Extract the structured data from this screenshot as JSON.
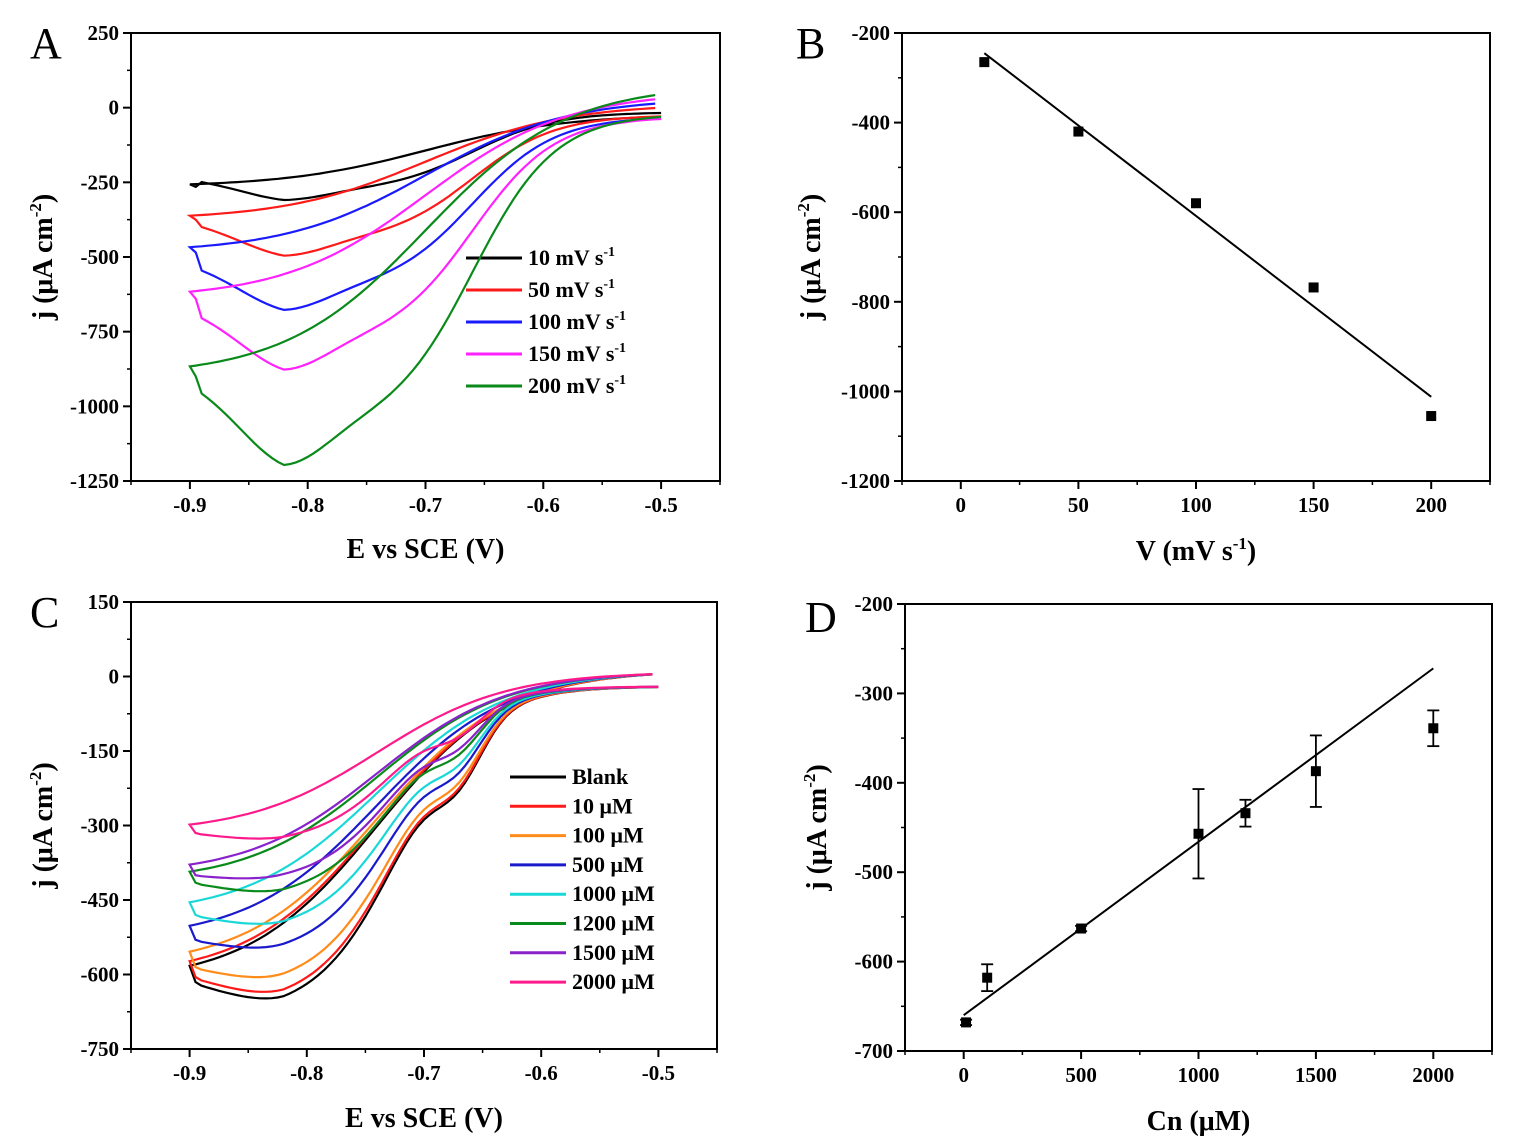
{
  "chart_data": [
    {
      "panel": "A",
      "type": "line",
      "xlabel": "E vs SCE (V)",
      "ylabel": "j (μA cm⁻²)",
      "xlim": [
        -0.95,
        -0.45
      ],
      "ylim": [
        -1250,
        250
      ],
      "xticks": [
        -0.9,
        -0.8,
        -0.7,
        -0.6,
        -0.5
      ],
      "xtick_labels": [
        "-0.9",
        "-0.8",
        "-0.7",
        "-0.6",
        "-0.5"
      ],
      "yticks": [
        250,
        0,
        -250,
        -500,
        -750,
        -1000,
        -1250
      ],
      "ytick_labels": [
        "250",
        "0",
        "-250",
        "-500",
        "-750",
        "-1000",
        "-1250"
      ],
      "legend_position": "center-right",
      "series": [
        {
          "name": "10 mV s⁻¹",
          "label_main": "10 mV s",
          "label_sup": "-1",
          "color": "#000000",
          "scale": 0.25,
          "y_start": -265,
          "oxid_end": -30,
          "forward_right": -15
        },
        {
          "name": "50 mV s⁻¹",
          "label_main": "50 mV s",
          "label_sup": "-1",
          "color": "#ff1a1a",
          "scale": 0.4,
          "y_start": -375,
          "oxid_end": 0,
          "forward_right": -25
        },
        {
          "name": "100 mV s⁻¹",
          "label_main": "100 mV s",
          "label_sup": "-1",
          "color": "#1a1aff",
          "scale": 0.55,
          "y_start": -485,
          "oxid_end": 15,
          "forward_right": -30
        },
        {
          "name": "150 mV s⁻¹",
          "label_main": "150 mV s",
          "label_sup": "-1",
          "color": "#ff22ff",
          "scale": 0.72,
          "y_start": -640,
          "oxid_end": 30,
          "forward_right": -30
        },
        {
          "name": "200 mV s⁻¹",
          "label_main": "200 mV s",
          "label_sup": "-1",
          "color": "#0a8a1a",
          "scale": 1.0,
          "y_start": -900,
          "oxid_end": 45,
          "forward_right": -20
        }
      ]
    },
    {
      "panel": "B",
      "type": "scatter",
      "xlabel": "V (mV s⁻¹)",
      "xlabel_main": "V (mV s",
      "xlabel_sup": "-1",
      "xlabel_close": ")",
      "ylabel": "j (μA cm⁻²)",
      "xlim": [
        -25,
        225
      ],
      "ylim": [
        -1200,
        -200
      ],
      "xticks": [
        0,
        50,
        100,
        150,
        200
      ],
      "xtick_labels": [
        "0",
        "50",
        "100",
        "150",
        "200"
      ],
      "yticks": [
        -200,
        -400,
        -600,
        -800,
        -1000,
        -1200
      ],
      "ytick_labels": [
        "-200",
        "-400",
        "-600",
        "-800",
        "-1000",
        "-1200"
      ],
      "points": {
        "x": [
          10,
          50,
          100,
          150,
          200
        ],
        "y": [
          -265,
          -420,
          -580,
          -768,
          -1055
        ]
      },
      "fit_line": {
        "x": [
          10,
          200
        ],
        "y": [
          -245,
          -1012
        ]
      }
    },
    {
      "panel": "C",
      "type": "line",
      "xlabel": "E vs SCE (V)",
      "ylabel": "j (μA cm⁻²)",
      "xlim": [
        -0.95,
        -0.45
      ],
      "ylim": [
        -750,
        150
      ],
      "xticks": [
        -0.9,
        -0.8,
        -0.7,
        -0.6,
        -0.5
      ],
      "xtick_labels": [
        "-0.9",
        "-0.8",
        "-0.7",
        "-0.6",
        "-0.5"
      ],
      "yticks": [
        150,
        0,
        -150,
        -300,
        -450,
        -600,
        -750
      ],
      "ytick_labels": [
        "150",
        "0",
        "-150",
        "-300",
        "-450",
        "-600",
        "-750"
      ],
      "legend_position": "center-right",
      "series": [
        {
          "name": "Blank",
          "color": "#000000",
          "y_start": -615,
          "y_min": -680,
          "shoulder": -330
        },
        {
          "name": "10 μM",
          "color": "#ff1a1a",
          "y_start": -605,
          "y_min": -665,
          "shoulder": -320
        },
        {
          "name": "100 μM",
          "color": "#ff8c1a",
          "y_start": -585,
          "y_min": -630,
          "shoulder": -300
        },
        {
          "name": "500 μM",
          "color": "#1a1acc",
          "y_start": -530,
          "y_min": -565,
          "shoulder": -270
        },
        {
          "name": "1000 μM",
          "color": "#1ad8d8",
          "y_start": -480,
          "y_min": -515,
          "shoulder": -245
        },
        {
          "name": "1200 μM",
          "color": "#0a8a1a",
          "y_start": -415,
          "y_min": -445,
          "shoulder": -215
        },
        {
          "name": "1500 μM",
          "color": "#8a22cc",
          "y_start": -400,
          "y_min": -412,
          "shoulder": -195
        },
        {
          "name": "2000 μM",
          "color": "#ff1a8c",
          "y_start": -315,
          "y_min": -330,
          "shoulder": -160
        }
      ]
    },
    {
      "panel": "D",
      "type": "scatter",
      "xlabel": "Cn (μM)",
      "ylabel": "j (μA cm⁻²)",
      "xlim": [
        -250,
        2250
      ],
      "ylim": [
        -700,
        -200
      ],
      "xticks": [
        0,
        500,
        1000,
        1500,
        2000
      ],
      "xtick_labels": [
        "0",
        "500",
        "1000",
        "1500",
        "2000"
      ],
      "yticks": [
        -200,
        -300,
        -400,
        -500,
        -600,
        -700
      ],
      "ytick_labels": [
        "-200",
        "-300",
        "-400",
        "-500",
        "-600",
        "-700"
      ],
      "points": {
        "x": [
          10,
          100,
          500,
          1000,
          1200,
          1500,
          2000
        ],
        "y": [
          -668,
          -618,
          -563,
          -457,
          -434,
          -387,
          -339
        ]
      },
      "error": [
        3,
        15,
        3,
        50,
        15,
        40,
        20
      ],
      "fit_line": {
        "x": [
          0,
          2000
        ],
        "y": [
          -660,
          -272
        ]
      }
    }
  ]
}
